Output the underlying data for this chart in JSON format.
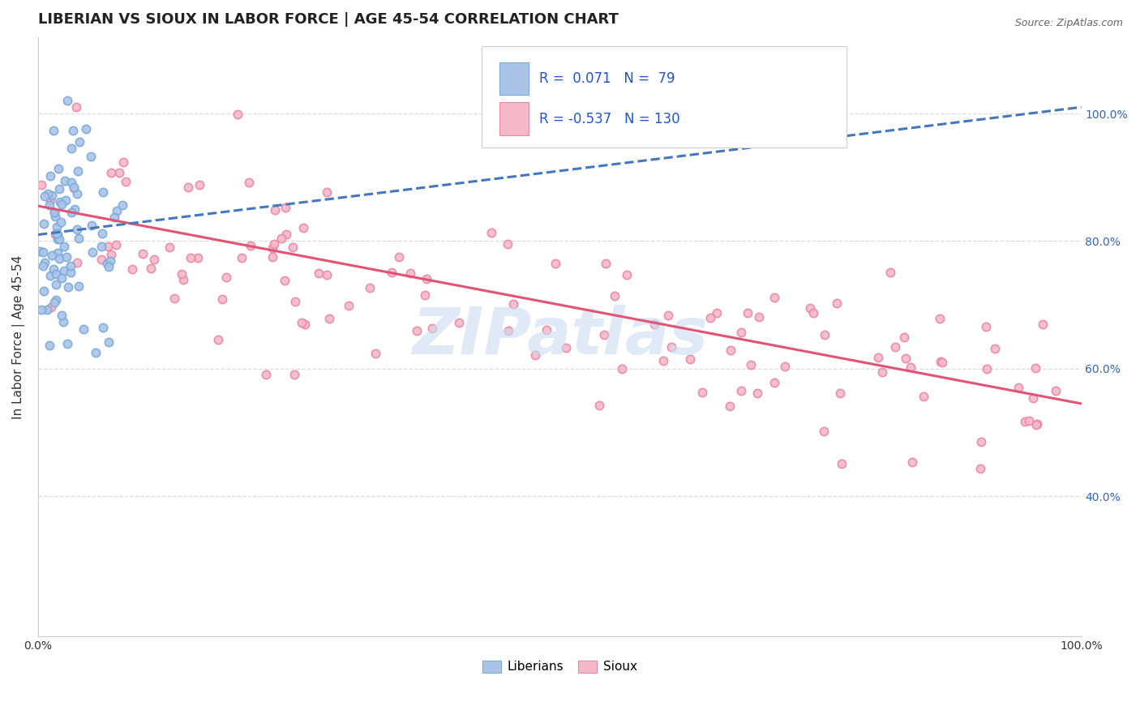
{
  "title": "LIBERIAN VS SIOUX IN LABOR FORCE | AGE 45-54 CORRELATION CHART",
  "source_text": "Source: ZipAtlas.com",
  "ylabel": "In Labor Force | Age 45-54",
  "xlim": [
    0.0,
    1.0
  ],
  "ylim": [
    0.18,
    1.12
  ],
  "x_ticks": [
    0.0,
    1.0
  ],
  "x_tick_labels": [
    "0.0%",
    "100.0%"
  ],
  "y_ticks": [
    0.4,
    0.6,
    0.8,
    1.0
  ],
  "y_tick_labels": [
    "40.0%",
    "60.0%",
    "80.0%",
    "100.0%"
  ],
  "liberian_color": "#aac4e8",
  "liberian_edge": "#7aaad8",
  "sioux_color": "#f5b8c8",
  "sioux_edge": "#e888a8",
  "trend_liberian_color": "#4477bb",
  "trend_sioux_color": "#e05575",
  "R_liberian": 0.071,
  "N_liberian": 79,
  "R_sioux": -0.537,
  "N_sioux": 130,
  "legend_liberian_color": "#aac4e8",
  "legend_sioux_color": "#f5b8c8",
  "watermark": "ZIPatlas",
  "background_color": "#ffffff",
  "grid_color": "#dddddd",
  "title_fontsize": 13,
  "axis_label_fontsize": 11,
  "tick_fontsize": 10,
  "marker_size": 55,
  "marker_linewidth": 1.2,
  "trend_linewidth": 2.2,
  "lib_trend_start_y": 0.81,
  "lib_trend_end_y": 1.01,
  "sioux_trend_start_y": 0.855,
  "sioux_trend_end_y": 0.545
}
